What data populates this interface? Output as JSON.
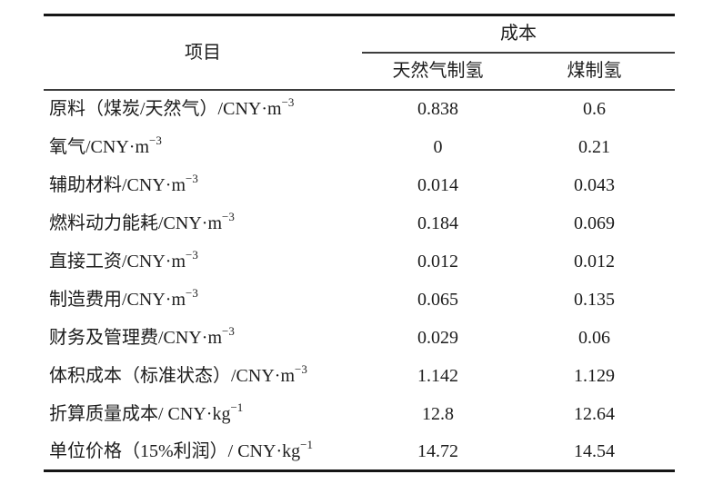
{
  "table": {
    "header": {
      "item": "项目",
      "cost_group": "成本",
      "columns": [
        "天然气制氢",
        "煤制氢"
      ]
    },
    "rows": [
      {
        "label": "原料（煤炭/天然气）/CNY·m",
        "sup": "−3",
        "natural_gas": "0.838",
        "coal": "0.6"
      },
      {
        "label": "氧气/CNY·m",
        "sup": "−3",
        "natural_gas": "0",
        "coal": "0.21"
      },
      {
        "label": "辅助材料/CNY·m",
        "sup": "−3",
        "natural_gas": "0.014",
        "coal": "0.043"
      },
      {
        "label": "燃料动力能耗/CNY·m",
        "sup": "−3",
        "natural_gas": "0.184",
        "coal": "0.069"
      },
      {
        "label": "直接工资/CNY·m",
        "sup": "−3",
        "natural_gas": "0.012",
        "coal": "0.012"
      },
      {
        "label": "制造费用/CNY·m",
        "sup": "−3",
        "natural_gas": "0.065",
        "coal": "0.135"
      },
      {
        "label": "财务及管理费/CNY·m",
        "sup": "−3",
        "natural_gas": "0.029",
        "coal": "0.06"
      },
      {
        "label": "体积成本（标准状态）/CNY·m",
        "sup": "−3",
        "natural_gas": "1.142",
        "coal": "1.129"
      },
      {
        "label": "折算质量成本/ CNY·kg",
        "sup": "−1",
        "natural_gas": "12.8",
        "coal": "12.64"
      },
      {
        "label": "单位价格（15%利润）/ CNY·kg",
        "sup": "−1",
        "natural_gas": "14.72",
        "coal": "14.54"
      }
    ]
  },
  "colors": {
    "background": "#ffffff",
    "text": "#1c1c1c",
    "thick_rule": "#161616",
    "thin_rule": "#3d3d3d"
  }
}
